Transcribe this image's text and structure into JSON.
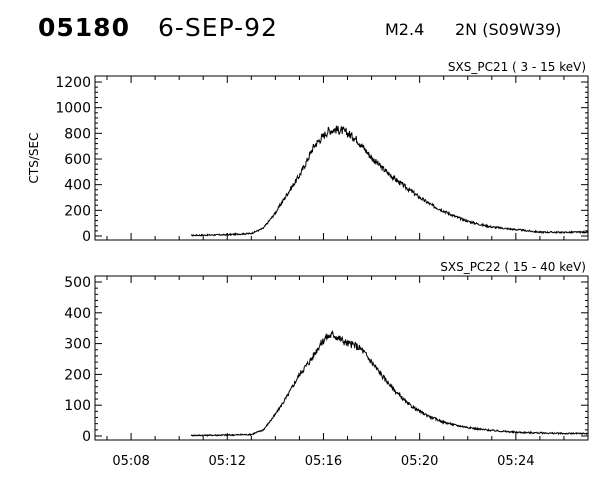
{
  "header": {
    "event_id": "05180",
    "date": "6-SEP-92",
    "flare_class": "M2.4",
    "location": "2N (S09W39)"
  },
  "chart_data": [
    {
      "type": "line",
      "title": "SXS_PC21  (  3 - 15 keV)",
      "ylabel": "CTS/SEC",
      "ylim": [
        0,
        1200
      ],
      "yticks": [
        "0",
        "200",
        "400",
        "600",
        "800",
        "1000",
        "1200"
      ],
      "xlim": [
        306.5,
        327
      ],
      "xticks": [
        308,
        312,
        316,
        320,
        324
      ],
      "xtick_labels": [
        "",
        "",
        "",
        "",
        ""
      ],
      "series": [
        {
          "x": [
            310.5,
            312,
            313,
            313.5,
            314,
            314.5,
            315,
            315.3,
            315.6,
            315.9,
            316.2,
            316.5,
            316.8,
            317.1,
            317.4,
            317.7,
            318,
            318.5,
            319,
            319.5,
            320,
            320.5,
            321,
            321.5,
            322,
            322.5,
            323,
            323.5,
            324,
            324.5,
            325,
            325.5,
            326,
            326.5,
            327
          ],
          "y": [
            5,
            10,
            20,
            60,
            180,
            330,
            470,
            580,
            700,
            760,
            820,
            830,
            820,
            790,
            750,
            680,
            610,
            520,
            440,
            370,
            300,
            240,
            195,
            150,
            115,
            90,
            70,
            60,
            50,
            40,
            30,
            30,
            28,
            30,
            30
          ]
        }
      ]
    },
    {
      "type": "line",
      "title": "SXS_PC22  ( 15 - 40 keV)",
      "ylabel": "",
      "ylim": [
        0,
        500
      ],
      "yticks": [
        "0",
        "100",
        "200",
        "300",
        "400",
        "500"
      ],
      "xlim": [
        306.5,
        327
      ],
      "xticks": [
        308,
        312,
        316,
        320,
        324
      ],
      "xtick_labels": [
        "05:08",
        "05:12",
        "05:16",
        "05:20",
        "05:24"
      ],
      "series": [
        {
          "x": [
            310.5,
            312,
            313,
            313.5,
            314,
            314.5,
            315,
            315.5,
            315.8,
            316.1,
            316.4,
            316.7,
            317,
            317.3,
            317.6,
            318,
            318.5,
            319,
            319.5,
            320,
            320.5,
            321,
            321.5,
            322,
            322.5,
            323,
            323.5,
            324,
            325,
            326,
            327
          ],
          "y": [
            2,
            3,
            5,
            20,
            70,
            130,
            200,
            250,
            290,
            320,
            330,
            315,
            300,
            295,
            280,
            240,
            190,
            145,
            105,
            80,
            60,
            45,
            35,
            28,
            22,
            18,
            15,
            12,
            10,
            8,
            8
          ]
        }
      ]
    }
  ]
}
